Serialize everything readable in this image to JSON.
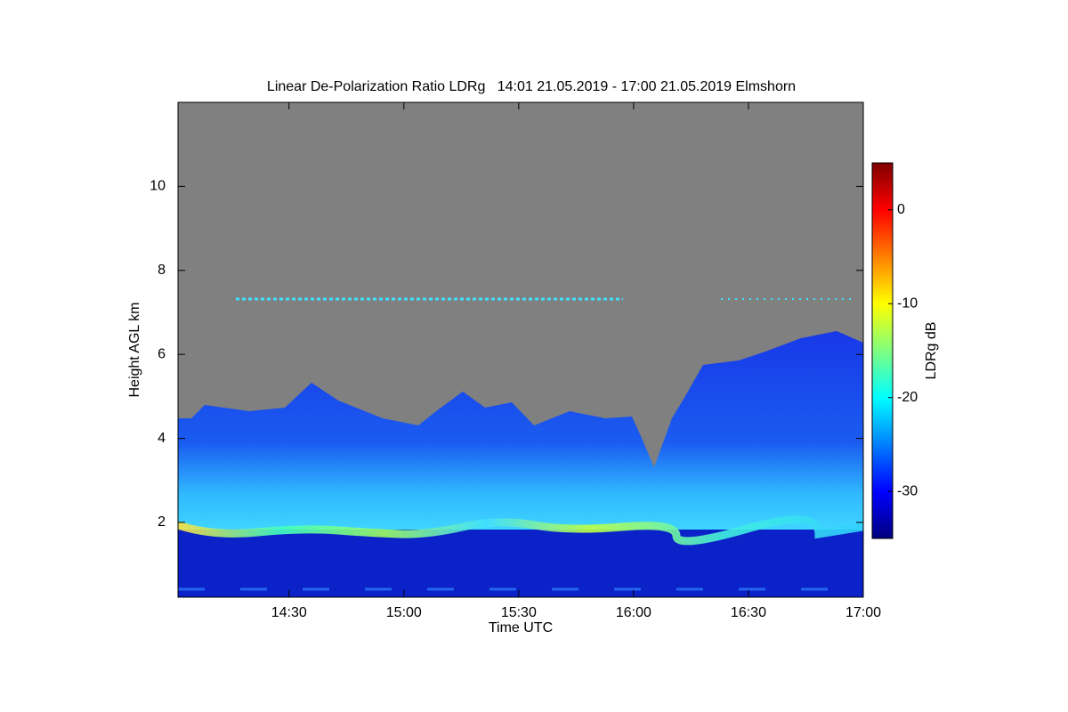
{
  "chart_data": {
    "type": "heatmap",
    "title": "Linear De-Polarization Ratio LDRg   14:01 21.05.2019 - 17:00 21.05.2019 Elmshorn",
    "x_label": "Time UTC",
    "y_label": "Height AGL km",
    "xlim": [
      14.0167,
      17.0
    ],
    "xticks": [
      {
        "value": 14.5,
        "label": "14:30"
      },
      {
        "value": 15.0,
        "label": "15:00"
      },
      {
        "value": 15.5,
        "label": "15:30"
      },
      {
        "value": 16.0,
        "label": "16:00"
      },
      {
        "value": 16.5,
        "label": "16:30"
      },
      {
        "value": 17.0,
        "label": "17:00"
      }
    ],
    "ylim": [
      0.22,
      12
    ],
    "yticks": [
      2,
      4,
      6,
      8,
      10
    ],
    "background_color": "#808080",
    "colorbar": {
      "label": "LDRg dB",
      "clim": [
        -35,
        5
      ],
      "cticks": [
        -30,
        -20,
        -10,
        0
      ],
      "colormap": "jet"
    }
  }
}
